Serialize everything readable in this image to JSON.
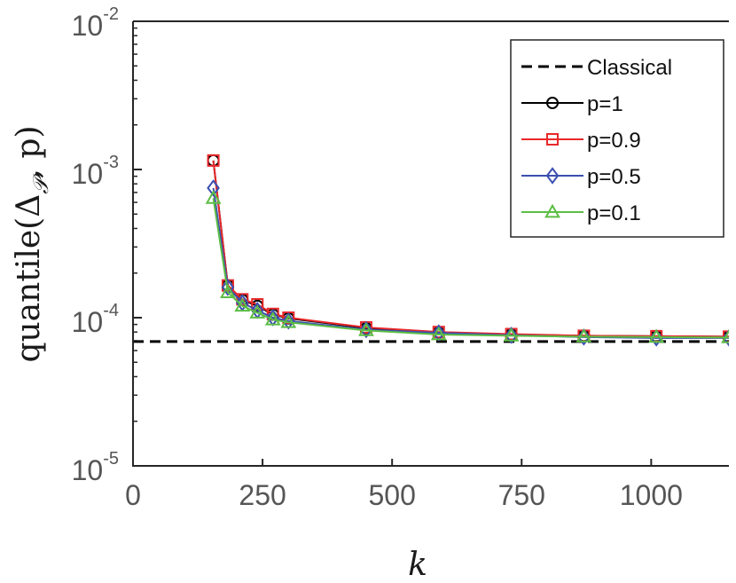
{
  "chart_data": {
    "type": "line",
    "xlabel": "k",
    "ylabel": "quantile(Δ𝒫, p)",
    "xlim": [
      0,
      1150
    ],
    "ylim": [
      1e-05,
      0.01
    ],
    "yscale": "log",
    "x_ticks": [
      0,
      250,
      500,
      750,
      1000
    ],
    "x_tick_labels": [
      "0",
      "250",
      "500",
      "750",
      "1000"
    ],
    "y_ticks": [
      {
        "value": 1e-05,
        "base": "10",
        "exp": "-5"
      },
      {
        "value": 0.0001,
        "base": "10",
        "exp": "-4"
      },
      {
        "value": 0.001,
        "base": "10",
        "exp": "-3"
      },
      {
        "value": 0.01,
        "base": "10",
        "exp": "-2"
      }
    ],
    "grid": false,
    "legend_position": "top-right",
    "reference_line": {
      "name": "Classical",
      "y": 6.9e-05,
      "color": "#000000",
      "style": "dashed"
    },
    "x": [
      155,
      183,
      211,
      240,
      270,
      300,
      450,
      590,
      730,
      870,
      1010,
      1150
    ],
    "series": [
      {
        "name": "p=1",
        "color": "#000000",
        "marker": "circle",
        "values": [
          0.00115,
          0.000165,
          0.000132,
          0.00012,
          0.000105,
          9.9e-05,
          8.5e-05,
          7.95e-05,
          7.7e-05,
          7.55e-05,
          7.5e-05,
          7.45e-05
        ]
      },
      {
        "name": "p=0.9",
        "color": "#e8282a",
        "marker": "square",
        "values": [
          0.00115,
          0.000165,
          0.000133,
          0.000123,
          0.000106,
          0.0001,
          8.6e-05,
          8e-05,
          7.75e-05,
          7.55e-05,
          7.5e-05,
          7.45e-05
        ]
      },
      {
        "name": "p=0.5",
        "color": "#3b4fb0",
        "marker": "diamond",
        "values": [
          0.00075,
          0.00016,
          0.000126,
          0.000112,
          0.0001,
          9.5e-05,
          8.3e-05,
          7.9e-05,
          7.6e-05,
          7.4e-05,
          7.3e-05,
          7.3e-05
        ]
      },
      {
        "name": "p=0.1",
        "color": "#5cbd45",
        "marker": "triangle",
        "values": [
          0.00064,
          0.000148,
          0.00012,
          0.000108,
          9.7e-05,
          9.3e-05,
          8.2e-05,
          7.7e-05,
          7.55e-05,
          7.45e-05,
          7.4e-05,
          7.35e-05
        ]
      }
    ]
  }
}
